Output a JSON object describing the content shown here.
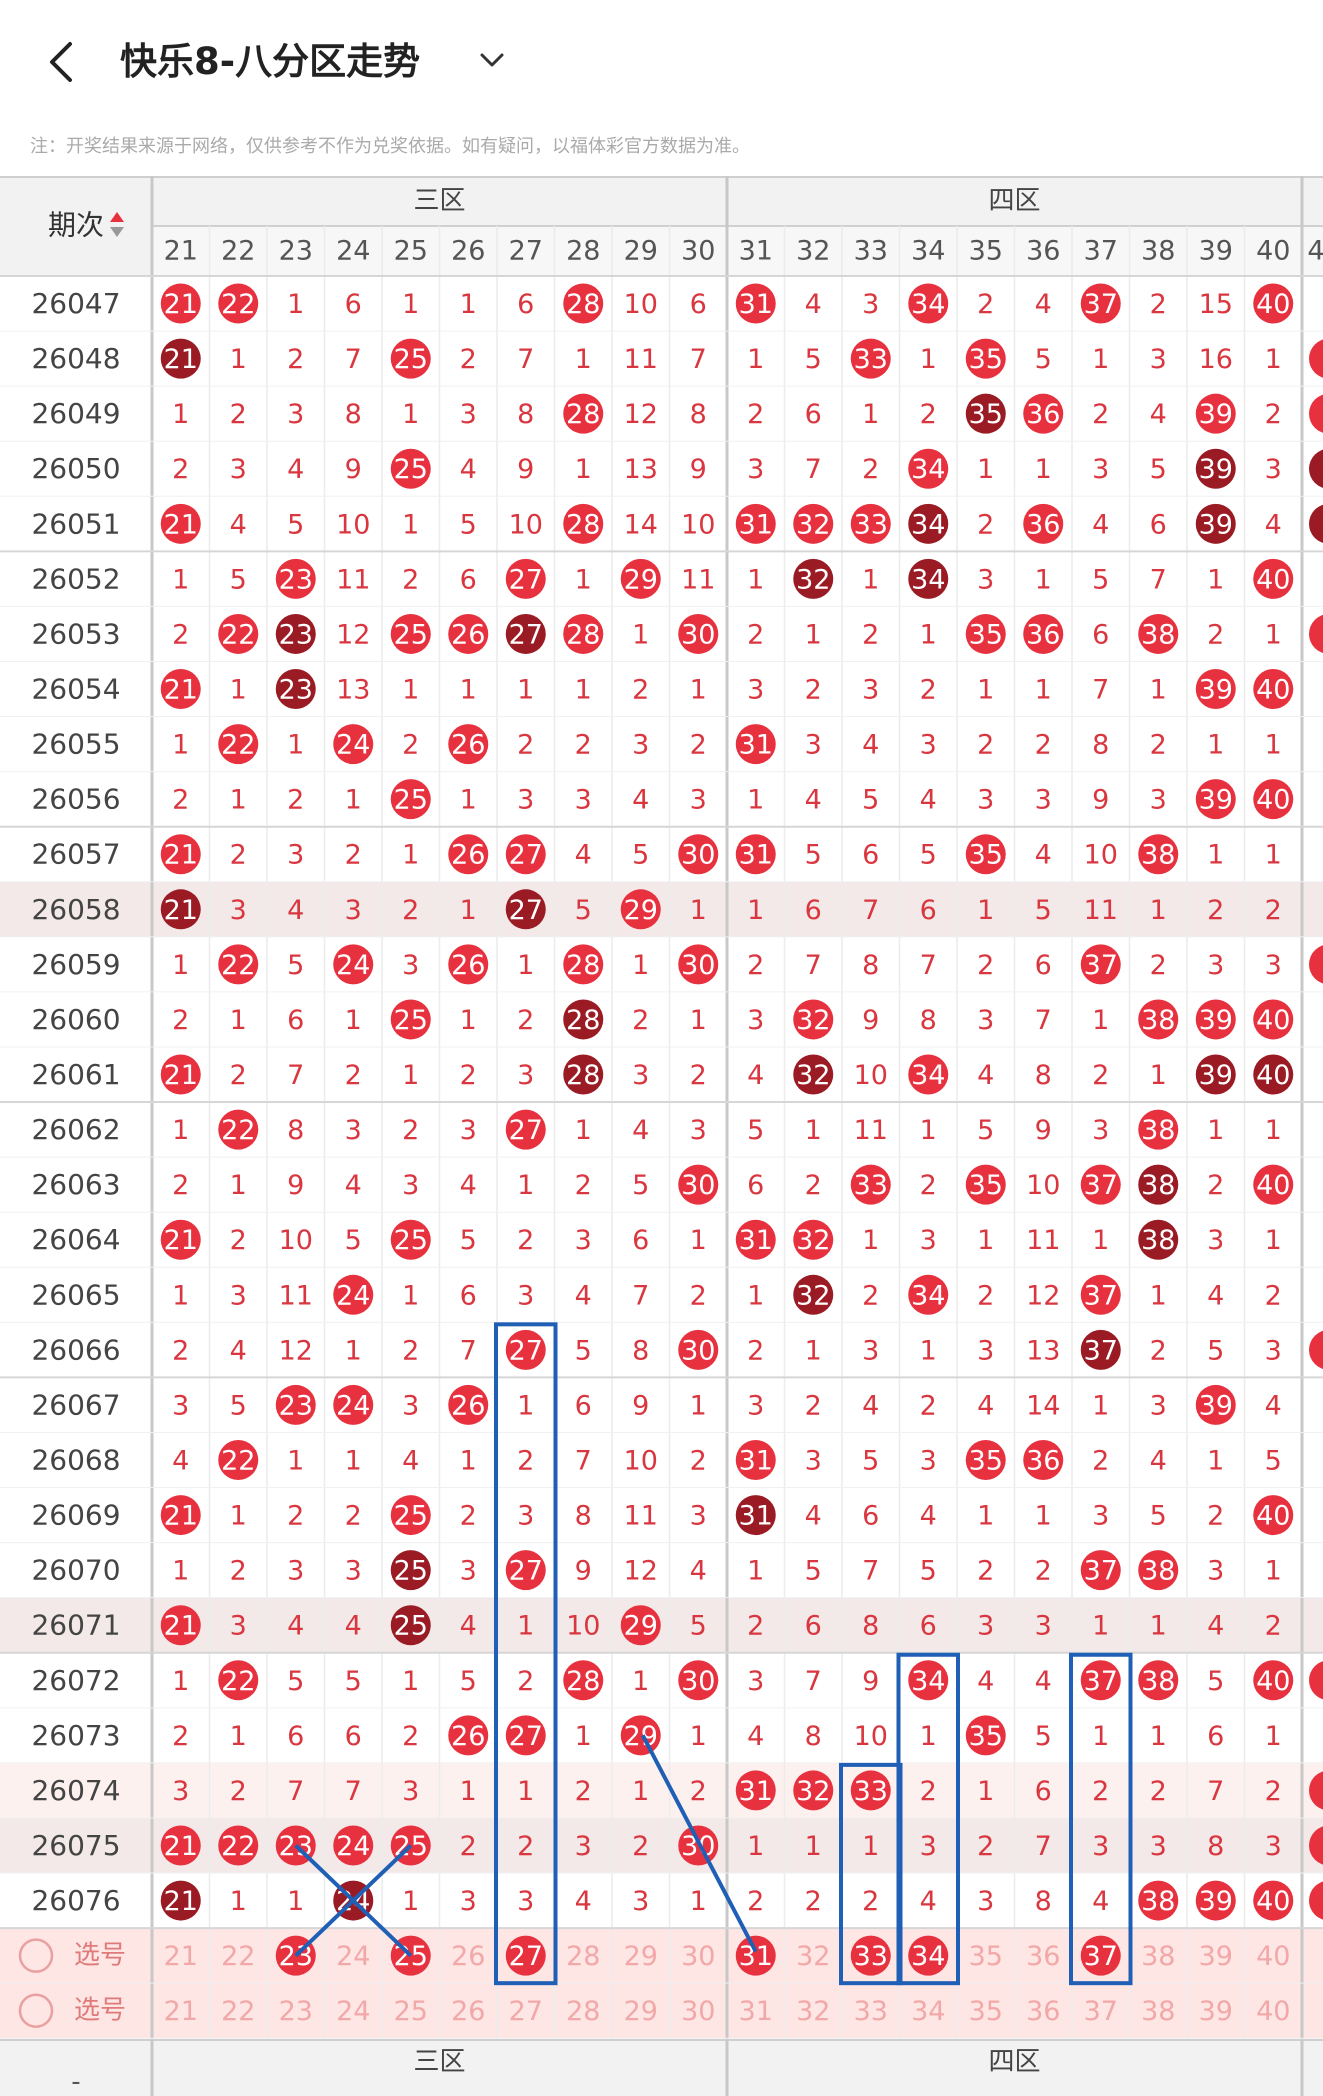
{
  "header": {
    "title": "快乐8-八分区走势",
    "back_icon": "chevron-left-icon",
    "dropdown_icon": "chevron-down-icon"
  },
  "note": "注：开奖结果来源于网络，仅供参考不作为兑奖依据。如有疑问，以福体彩官方数据为准。",
  "table": {
    "period_header": "期次",
    "sort_icon": "sort-updown-icon",
    "zone_labels": [
      "三区",
      "四区"
    ],
    "columns": [
      "21",
      "22",
      "23",
      "24",
      "25",
      "26",
      "27",
      "28",
      "29",
      "30",
      "31",
      "32",
      "33",
      "34",
      "35",
      "36",
      "37",
      "38",
      "39",
      "40"
    ],
    "cut_column_label": "4",
    "footer_dash": "-",
    "select_label": "选号",
    "rows": [
      {
        "period": "26047",
        "cells": [
          "21",
          "22",
          "1",
          "6",
          "1",
          "1",
          "6",
          "28",
          "10",
          "6",
          "31",
          "4",
          "3",
          "34",
          "2",
          "4",
          "37",
          "2",
          "15",
          "40"
        ],
        "edge": ""
      },
      {
        "period": "26048",
        "cells": [
          "21",
          "1",
          "2",
          "7",
          "25",
          "2",
          "7",
          "1",
          "11",
          "7",
          "1",
          "5",
          "33",
          "1",
          "35",
          "5",
          "1",
          "3",
          "16",
          "1"
        ],
        "edge": "red"
      },
      {
        "period": "26049",
        "cells": [
          "1",
          "2",
          "3",
          "8",
          "1",
          "3",
          "8",
          "28",
          "12",
          "8",
          "2",
          "6",
          "1",
          "2",
          "35",
          "36",
          "2",
          "4",
          "39",
          "2"
        ],
        "edge": "red"
      },
      {
        "period": "26050",
        "cells": [
          "2",
          "3",
          "4",
          "9",
          "25",
          "4",
          "9",
          "1",
          "13",
          "9",
          "3",
          "7",
          "2",
          "34",
          "1",
          "1",
          "3",
          "5",
          "39",
          "3"
        ],
        "edge": "dark"
      },
      {
        "period": "26051",
        "cells": [
          "21",
          "4",
          "5",
          "10",
          "1",
          "5",
          "10",
          "28",
          "14",
          "10",
          "31",
          "32",
          "33",
          "34",
          "2",
          "36",
          "4",
          "6",
          "39",
          "4"
        ],
        "edge": "dark"
      },
      {
        "period": "26052",
        "cells": [
          "1",
          "5",
          "23",
          "11",
          "2",
          "6",
          "27",
          "1",
          "29",
          "11",
          "1",
          "32",
          "1",
          "34",
          "3",
          "1",
          "5",
          "7",
          "1",
          "40"
        ],
        "edge": ""
      },
      {
        "period": "26053",
        "cells": [
          "2",
          "22",
          "23",
          "12",
          "25",
          "26",
          "27",
          "28",
          "1",
          "30",
          "2",
          "1",
          "2",
          "1",
          "35",
          "36",
          "6",
          "38",
          "2",
          "1"
        ],
        "edge": "red"
      },
      {
        "period": "26054",
        "cells": [
          "21",
          "1",
          "23",
          "13",
          "1",
          "1",
          "1",
          "1",
          "2",
          "1",
          "3",
          "2",
          "3",
          "2",
          "1",
          "1",
          "7",
          "1",
          "39",
          "40"
        ],
        "edge": ""
      },
      {
        "period": "26055",
        "cells": [
          "1",
          "22",
          "1",
          "24",
          "2",
          "26",
          "2",
          "2",
          "3",
          "2",
          "31",
          "3",
          "4",
          "3",
          "2",
          "2",
          "8",
          "2",
          "1",
          "1"
        ],
        "edge": ""
      },
      {
        "period": "26056",
        "cells": [
          "2",
          "1",
          "2",
          "1",
          "25",
          "1",
          "3",
          "3",
          "4",
          "3",
          "1",
          "4",
          "5",
          "4",
          "3",
          "3",
          "9",
          "3",
          "39",
          "40"
        ],
        "edge": ""
      },
      {
        "period": "26057",
        "cells": [
          "21",
          "2",
          "3",
          "2",
          "1",
          "26",
          "27",
          "4",
          "5",
          "30",
          "31",
          "5",
          "6",
          "5",
          "35",
          "4",
          "10",
          "38",
          "1",
          "1"
        ],
        "edge": ""
      },
      {
        "period": "26058",
        "cells": [
          "21",
          "3",
          "4",
          "3",
          "2",
          "1",
          "27",
          "5",
          "29",
          "1",
          "1",
          "6",
          "7",
          "6",
          "1",
          "5",
          "11",
          "1",
          "2",
          "2"
        ],
        "edge": ""
      },
      {
        "period": "26059",
        "cells": [
          "1",
          "22",
          "5",
          "24",
          "3",
          "26",
          "1",
          "28",
          "1",
          "30",
          "2",
          "7",
          "8",
          "7",
          "2",
          "6",
          "37",
          "2",
          "3",
          "3"
        ],
        "edge": "red"
      },
      {
        "period": "26060",
        "cells": [
          "2",
          "1",
          "6",
          "1",
          "25",
          "1",
          "2",
          "28",
          "2",
          "1",
          "3",
          "32",
          "9",
          "8",
          "3",
          "7",
          "1",
          "38",
          "39",
          "40"
        ],
        "edge": ""
      },
      {
        "period": "26061",
        "cells": [
          "21",
          "2",
          "7",
          "2",
          "1",
          "2",
          "3",
          "28",
          "3",
          "2",
          "4",
          "32",
          "10",
          "34",
          "4",
          "8",
          "2",
          "1",
          "39",
          "40"
        ],
        "edge": ""
      },
      {
        "period": "26062",
        "cells": [
          "1",
          "22",
          "8",
          "3",
          "2",
          "3",
          "27",
          "1",
          "4",
          "3",
          "5",
          "1",
          "11",
          "1",
          "5",
          "9",
          "3",
          "38",
          "1",
          "1"
        ],
        "edge": ""
      },
      {
        "period": "26063",
        "cells": [
          "2",
          "1",
          "9",
          "4",
          "3",
          "4",
          "1",
          "2",
          "5",
          "30",
          "6",
          "2",
          "33",
          "2",
          "35",
          "10",
          "37",
          "38",
          "2",
          "40"
        ],
        "edge": ""
      },
      {
        "period": "26064",
        "cells": [
          "21",
          "2",
          "10",
          "5",
          "25",
          "5",
          "2",
          "3",
          "6",
          "1",
          "31",
          "32",
          "1",
          "3",
          "1",
          "11",
          "1",
          "38",
          "3",
          "1"
        ],
        "edge": ""
      },
      {
        "period": "26065",
        "cells": [
          "1",
          "3",
          "11",
          "24",
          "1",
          "6",
          "3",
          "4",
          "7",
          "2",
          "1",
          "32",
          "2",
          "34",
          "2",
          "12",
          "37",
          "1",
          "4",
          "2"
        ],
        "edge": ""
      },
      {
        "period": "26066",
        "cells": [
          "2",
          "4",
          "12",
          "1",
          "2",
          "7",
          "27",
          "5",
          "8",
          "30",
          "2",
          "1",
          "3",
          "1",
          "3",
          "13",
          "37",
          "2",
          "5",
          "3"
        ],
        "edge": "red"
      },
      {
        "period": "26067",
        "cells": [
          "3",
          "5",
          "23",
          "24",
          "3",
          "26",
          "1",
          "6",
          "9",
          "1",
          "3",
          "2",
          "4",
          "2",
          "4",
          "14",
          "1",
          "3",
          "39",
          "4"
        ],
        "edge": ""
      },
      {
        "period": "26068",
        "cells": [
          "4",
          "22",
          "1",
          "1",
          "4",
          "1",
          "2",
          "7",
          "10",
          "2",
          "31",
          "3",
          "5",
          "3",
          "35",
          "36",
          "2",
          "4",
          "1",
          "5"
        ],
        "edge": ""
      },
      {
        "period": "26069",
        "cells": [
          "21",
          "1",
          "2",
          "2",
          "25",
          "2",
          "3",
          "8",
          "11",
          "3",
          "31",
          "4",
          "6",
          "4",
          "1",
          "1",
          "3",
          "5",
          "2",
          "40"
        ],
        "edge": ""
      },
      {
        "period": "26070",
        "cells": [
          "1",
          "2",
          "3",
          "3",
          "25",
          "3",
          "27",
          "9",
          "12",
          "4",
          "1",
          "5",
          "7",
          "5",
          "2",
          "2",
          "37",
          "38",
          "3",
          "1"
        ],
        "edge": ""
      },
      {
        "period": "26071",
        "cells": [
          "21",
          "3",
          "4",
          "4",
          "25",
          "4",
          "1",
          "10",
          "29",
          "5",
          "2",
          "6",
          "8",
          "6",
          "3",
          "3",
          "1",
          "1",
          "4",
          "2"
        ],
        "edge": ""
      },
      {
        "period": "26072",
        "cells": [
          "1",
          "22",
          "5",
          "5",
          "1",
          "5",
          "2",
          "28",
          "1",
          "30",
          "3",
          "7",
          "9",
          "34",
          "4",
          "4",
          "37",
          "38",
          "5",
          "40"
        ],
        "edge": "red"
      },
      {
        "period": "26073",
        "cells": [
          "2",
          "1",
          "6",
          "6",
          "2",
          "26",
          "27",
          "1",
          "29",
          "1",
          "4",
          "8",
          "10",
          "1",
          "35",
          "5",
          "1",
          "1",
          "6",
          "1"
        ],
        "edge": ""
      },
      {
        "period": "26074",
        "cells": [
          "3",
          "2",
          "7",
          "7",
          "3",
          "1",
          "1",
          "2",
          "1",
          "2",
          "31",
          "32",
          "33",
          "2",
          "1",
          "6",
          "2",
          "2",
          "7",
          "2"
        ],
        "edge": "red"
      },
      {
        "period": "26075",
        "cells": [
          "21",
          "22",
          "23",
          "24",
          "25",
          "2",
          "2",
          "3",
          "2",
          "30",
          "1",
          "1",
          "1",
          "3",
          "2",
          "7",
          "3",
          "3",
          "8",
          "3"
        ],
        "edge": "red"
      },
      {
        "period": "26076",
        "cells": [
          "21",
          "1",
          "1",
          "24",
          "1",
          "3",
          "3",
          "4",
          "3",
          "1",
          "2",
          "2",
          "2",
          "4",
          "3",
          "8",
          "4",
          "38",
          "39",
          "40"
        ],
        "edge": "red"
      }
    ]
  },
  "colors": {
    "red_ball": "#e8313f",
    "dark_ball": "#9a1b24",
    "digit_red": "#d9363f",
    "annotation_blue": "#1f5fb5",
    "selection_row_bg": "#fde6e4"
  }
}
